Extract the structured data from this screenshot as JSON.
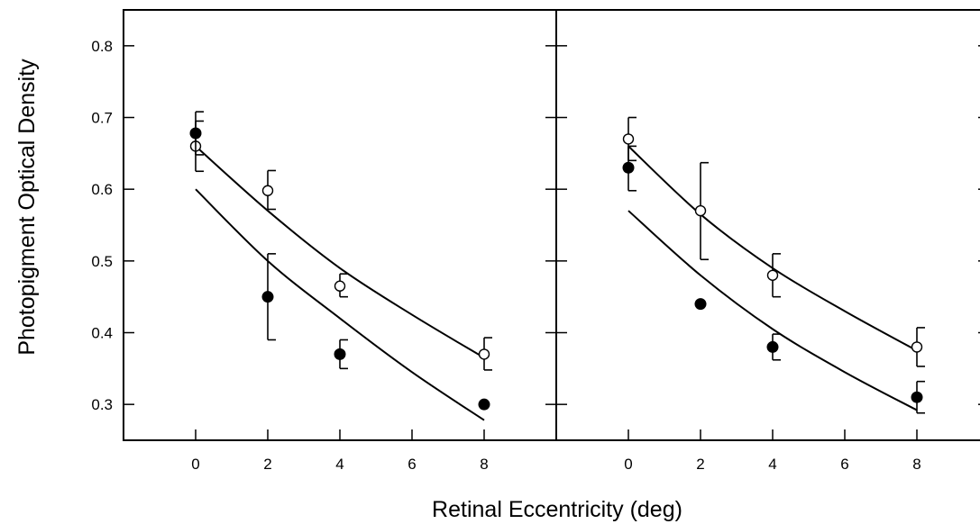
{
  "chart_data": [
    {
      "type": "scatter",
      "panel": "left",
      "xlabel": "Retinal Eccentricity (deg)",
      "ylabel": "Photopigment Optical Density",
      "xlim": [
        -2,
        10
      ],
      "ylim": [
        0.25,
        0.85
      ],
      "x_ticks": [
        "0",
        "2",
        "4",
        "6",
        "8"
      ],
      "y_ticks": [
        "0.3",
        "0.4",
        "0.5",
        "0.6",
        "0.7",
        "0.8"
      ],
      "series": [
        {
          "marker": "open-circle",
          "points": [
            {
              "x": 0,
              "y": 0.66,
              "err_low": 0.625,
              "err_high": 0.695
            },
            {
              "x": 2,
              "y": 0.598,
              "err_low": 0.572,
              "err_high": 0.626
            },
            {
              "x": 4,
              "y": 0.465,
              "err_low": 0.45,
              "err_high": 0.482
            },
            {
              "x": 8,
              "y": 0.37,
              "err_low": 0.348,
              "err_high": 0.393
            }
          ],
          "fit": [
            [
              0,
              0.66
            ],
            [
              2,
              0.57
            ],
            [
              4,
              0.49
            ],
            [
              6,
              0.425
            ],
            [
              8,
              0.365
            ]
          ]
        },
        {
          "marker": "filled-circle",
          "points": [
            {
              "x": 0,
              "y": 0.678,
              "err_low": 0.648,
              "err_high": 0.708
            },
            {
              "x": 2,
              "y": 0.45,
              "err_low": 0.39,
              "err_high": 0.51
            },
            {
              "x": 4,
              "y": 0.37,
              "err_low": 0.35,
              "err_high": 0.39
            },
            {
              "x": 8,
              "y": 0.3
            }
          ],
          "fit": [
            [
              0,
              0.6
            ],
            [
              2,
              0.5
            ],
            [
              4,
              0.42
            ],
            [
              6,
              0.345
            ],
            [
              8,
              0.278
            ]
          ]
        }
      ]
    },
    {
      "type": "scatter",
      "panel": "right",
      "xlabel": "Retinal Eccentricity (deg)",
      "xlim": [
        -2,
        10
      ],
      "ylim": [
        0.25,
        0.85
      ],
      "x_ticks": [
        "0",
        "2",
        "4",
        "6",
        "8"
      ],
      "series": [
        {
          "marker": "open-circle",
          "points": [
            {
              "x": 0,
              "y": 0.67,
              "err_low": 0.64,
              "err_high": 0.7
            },
            {
              "x": 2,
              "y": 0.57,
              "err_low": 0.502,
              "err_high": 0.637
            },
            {
              "x": 4,
              "y": 0.48,
              "err_low": 0.45,
              "err_high": 0.51
            },
            {
              "x": 8,
              "y": 0.38,
              "err_low": 0.353,
              "err_high": 0.407
            }
          ],
          "fit": [
            [
              0,
              0.66
            ],
            [
              2,
              0.565
            ],
            [
              4,
              0.49
            ],
            [
              6,
              0.43
            ],
            [
              8,
              0.375
            ]
          ]
        },
        {
          "marker": "filled-circle",
          "points": [
            {
              "x": 0,
              "y": 0.63,
              "err_low": 0.598,
              "err_high": 0.66
            },
            {
              "x": 2,
              "y": 0.44
            },
            {
              "x": 4,
              "y": 0.38,
              "err_low": 0.362,
              "err_high": 0.398
            },
            {
              "x": 8,
              "y": 0.31,
              "err_low": 0.288,
              "err_high": 0.332
            }
          ],
          "fit": [
            [
              0,
              0.57
            ],
            [
              2,
              0.48
            ],
            [
              4,
              0.405
            ],
            [
              6,
              0.345
            ],
            [
              8,
              0.292
            ]
          ]
        }
      ]
    }
  ]
}
